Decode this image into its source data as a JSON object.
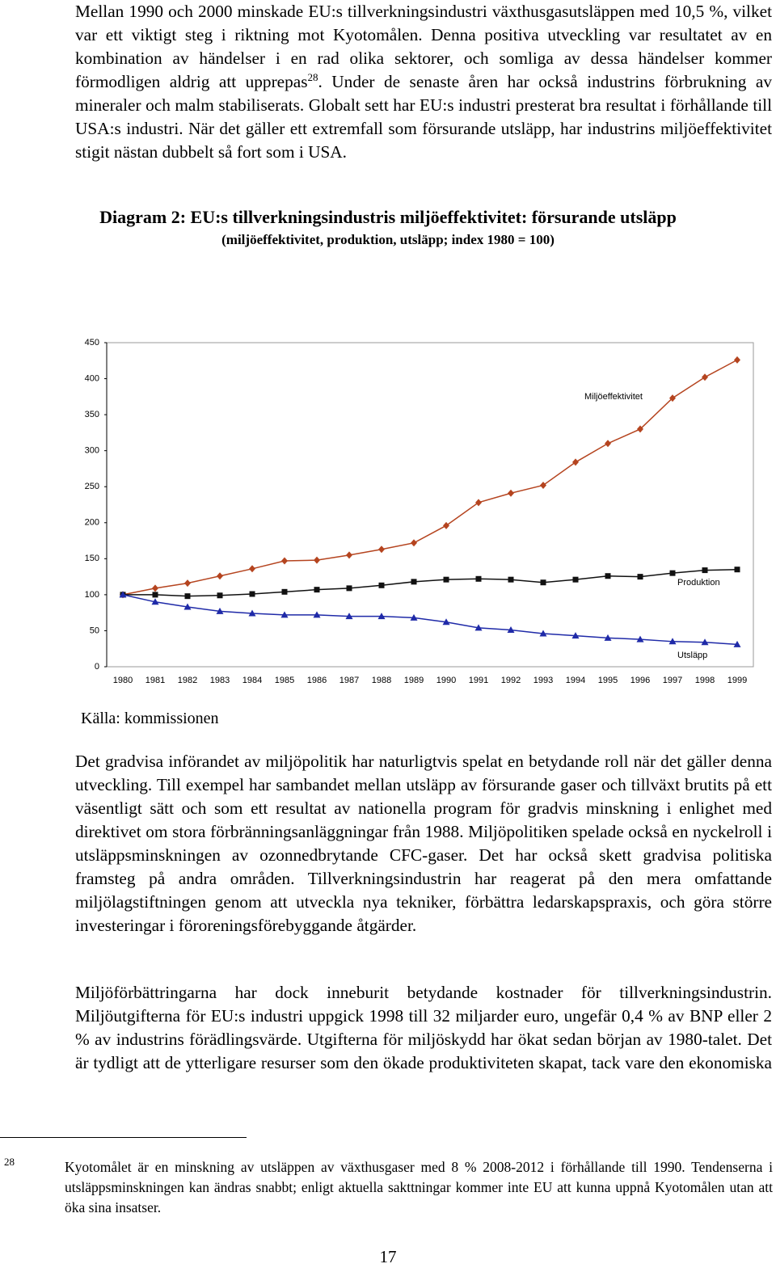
{
  "intro": {
    "text": "Mellan 1990 och 2000 minskade EU:s tillverkningsindustri växthusgasutsläppen med 10,5 %, vilket var ett viktigt steg i riktning mot Kyotomålen. Denna positiva utveckling var resultatet av en kombination av händelser i en rad olika sektorer, och somliga av dessa händelser kommer förmodligen aldrig att upprepas",
    "footnote_ref": "28",
    "text_after": ". Under de senaste åren har också industrins förbrukning av mineraler och malm stabiliserats. Globalt sett har EU:s industri presterat bra resultat i förhållande till USA:s industri. När det gäller ett extremfall som försurande utsläpp, har industrins miljöeffektivitet stigit nästan dubbelt så fort som i USA."
  },
  "chart_data": {
    "type": "line",
    "title": "Diagram 2: EU:s tillverkningsindustris miljöeffektivitet: försurande utsläpp",
    "subtitle": "(miljöeffektivitet, produktion, utsläpp; index 1980 = 100)",
    "categories": [
      "1980",
      "1981",
      "1982",
      "1983",
      "1984",
      "1985",
      "1986",
      "1987",
      "1988",
      "1989",
      "1990",
      "1991",
      "1992",
      "1993",
      "1994",
      "1995",
      "1996",
      "1997",
      "1998",
      "1999"
    ],
    "series": [
      {
        "name": "Miljöeffektivitet",
        "color": "#b5441f",
        "marker": "diamond",
        "values": [
          100,
          109,
          116,
          126,
          136,
          147,
          148,
          155,
          163,
          172,
          196,
          228,
          241,
          252,
          284,
          310,
          330,
          373,
          402,
          426
        ]
      },
      {
        "name": "Produktion",
        "color": "#111111",
        "marker": "square",
        "values": [
          100,
          100,
          98,
          99,
          101,
          104,
          107,
          109,
          113,
          118,
          121,
          122,
          121,
          117,
          121,
          126,
          125,
          130,
          134,
          135
        ]
      },
      {
        "name": "Utsläpp",
        "color": "#1f2aa8",
        "marker": "triangle",
        "values": [
          100,
          90,
          83,
          77,
          74,
          72,
          72,
          70,
          70,
          68,
          62,
          54,
          51,
          46,
          43,
          40,
          38,
          35,
          34,
          31
        ]
      }
    ],
    "ylim": [
      0,
      450
    ],
    "yticks": [
      0,
      50,
      100,
      150,
      200,
      250,
      300,
      350,
      400,
      450
    ],
    "grid": false
  },
  "source": "Källa: kommissionen",
  "body": [
    "Det gradvisa införandet av miljöpolitik har naturligtvis spelat en betydande roll när det gäller denna utveckling. Till exempel har sambandet mellan utsläpp av försurande gaser och tillväxt brutits på ett väsentligt sätt och som ett resultat av nationella program för gradvis minskning i enlighet med direktivet om stora förbränningsanläggningar från 1988. Miljöpolitiken spelade också en nyckelroll i utsläppsminskningen av ozonnedbrytande CFC-gaser. Det har också skett gradvisa politiska framsteg på andra områden. Tillverkningsindustrin har reagerat på den mera omfattande miljölagstiftningen genom att utveckla nya tekniker, förbättra ledarskapspraxis, och göra större investeringar i föroreningsförebyggande åtgärder.",
    "Miljöförbättringarna har dock inneburit betydande kostnader för tillverkningsindustrin. Miljöutgifterna för EU:s industri uppgick 1998 till 32 miljarder euro, ungefär 0,4 % av BNP eller 2 % av industrins förädlingsvärde. Utgifterna för miljöskydd har ökat sedan början av 1980-talet. Det är tydligt att de ytterligare resurser som den ökade produktiviteten skapat, tack vare den ekonomiska"
  ],
  "footnote": {
    "number": "28",
    "text": "Kyotomålet är en minskning av utsläppen av växthusgaser med 8 % 2008-2012 i förhållande till 1990. Tendenserna i utsläppsminskningen kan ändras snabbt; enligt aktuella sakttningar kommer inte EU att kunna uppnå Kyotomålen utan att öka sina insatser."
  },
  "page_number": "17"
}
